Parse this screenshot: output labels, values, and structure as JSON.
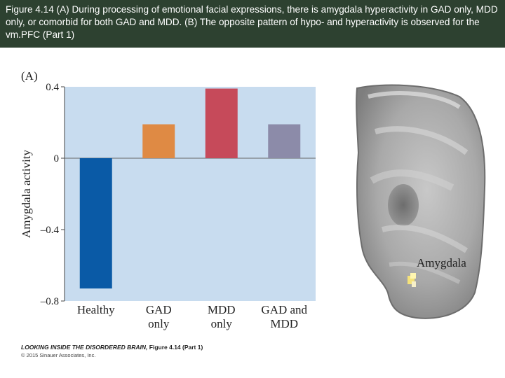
{
  "header": {
    "caption": "Figure 4.14 (A) During processing of emotional facial expressions, there is amygdala hyperactivity in GAD only, MDD only, or comorbid for both GAD and MDD. (B) The opposite pattern of hypo- and hyperactivity is observed for the vm.PFC (Part 1)"
  },
  "chart_data": {
    "type": "bar",
    "panel_label": "(A)",
    "categories": [
      "Healthy",
      "GAD only",
      "MDD only",
      "GAD and MDD"
    ],
    "category_lines": [
      [
        "Healthy"
      ],
      [
        "GAD",
        "only"
      ],
      [
        "MDD",
        "only"
      ],
      [
        "GAD and",
        "MDD"
      ]
    ],
    "values": [
      -0.73,
      0.19,
      0.39,
      0.19
    ],
    "colors": [
      "#0a5aa6",
      "#df8a44",
      "#c64a5a",
      "#8c8ba9"
    ],
    "ylabel": "Amygdala activity",
    "ylim": [
      -0.8,
      0.4
    ],
    "yticks": [
      0.4,
      0,
      -0.4,
      -0.8
    ],
    "ytick_labels": [
      "0.4",
      "0",
      "–0.4",
      "–0.8"
    ],
    "plot_background": "#c8dcef"
  },
  "image": {
    "label": "Amygdala",
    "description_icon": "brain-scan-icon"
  },
  "footer": {
    "title_italic": "LOOKING INSIDE THE DISORDERED BRAIN,",
    "title_plain": " Figure 4.14 (Part 1)",
    "copyright": "© 2015 Sinauer Associates, Inc."
  }
}
